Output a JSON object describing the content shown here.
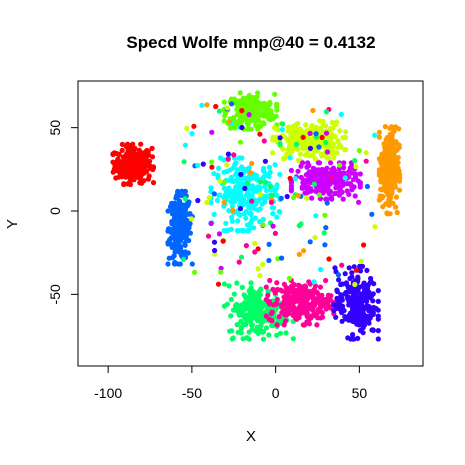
{
  "chart_data": {
    "type": "scatter",
    "title": "Specd Wolfe mnp@40 = 0.4132",
    "xlabel": "X",
    "ylabel": "Y",
    "xlim": [
      -118,
      88
    ],
    "ylim": [
      -93,
      78
    ],
    "xticks": [
      -100,
      -50,
      0,
      50
    ],
    "yticks": [
      -50,
      0,
      50
    ],
    "grid": false,
    "legend": "none",
    "clusters": [
      {
        "color": "#FF0000",
        "center": [
          -85,
          28
        ],
        "spread": [
          10,
          10
        ],
        "count": 260
      },
      {
        "color": "#0066FF",
        "center": [
          -57,
          -10
        ],
        "spread": [
          6,
          18
        ],
        "count": 230
      },
      {
        "color": "#66FF00",
        "center": [
          -15,
          60
        ],
        "spread": [
          13,
          9
        ],
        "count": 230
      },
      {
        "color": "#CCFF00",
        "center": [
          20,
          42
        ],
        "spread": [
          18,
          10
        ],
        "count": 240
      },
      {
        "color": "#00FFFF",
        "center": [
          -18,
          10
        ],
        "spread": [
          17,
          18
        ],
        "count": 240
      },
      {
        "color": "#CC00FF",
        "center": [
          30,
          18
        ],
        "spread": [
          17,
          9
        ],
        "count": 240
      },
      {
        "color": "#FF9900",
        "center": [
          68,
          25
        ],
        "spread": [
          5,
          22
        ],
        "count": 260
      },
      {
        "color": "#00FF66",
        "center": [
          -10,
          -60
        ],
        "spread": [
          17,
          14
        ],
        "count": 240
      },
      {
        "color": "#FF0099",
        "center": [
          15,
          -55
        ],
        "spread": [
          17,
          11
        ],
        "count": 240
      },
      {
        "color": "#3300FF",
        "center": [
          48,
          -55
        ],
        "spread": [
          11,
          18
        ],
        "count": 240
      }
    ]
  }
}
